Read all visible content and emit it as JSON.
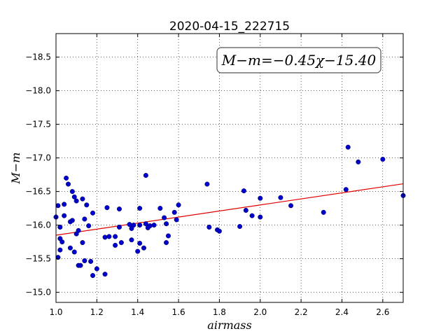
{
  "chart_data": {
    "type": "scatter",
    "title": "2020-04-15_222715",
    "xlabel": "airmass",
    "ylabel": "M−m",
    "xlim": [
      1.0,
      2.7
    ],
    "ylim": [
      -18.85,
      -14.85
    ],
    "y_inverted": true,
    "grid": true,
    "x_ticks": [
      1.0,
      1.2,
      1.4,
      1.6,
      1.8,
      2.0,
      2.2,
      2.4,
      2.6
    ],
    "x_tick_labels": [
      "1.0",
      "1.2",
      "1.4",
      "1.6",
      "1.8",
      "2.0",
      "2.2",
      "2.4",
      "2.6"
    ],
    "y_ticks": [
      -15.0,
      -15.5,
      -16.0,
      -16.5,
      -17.0,
      -17.5,
      -18.0,
      -18.5
    ],
    "y_tick_labels": [
      "−15.0",
      "−15.5",
      "−16.0",
      "−16.5",
      "−17.0",
      "−17.5",
      "−18.0",
      "−18.5"
    ],
    "annotation": "M−m=−0.45χ−15.40",
    "annotation_position": "top-right",
    "fit_line": {
      "slope": -0.45,
      "intercept": -15.4,
      "color": "#e00000"
    },
    "point_color": "#0000cc",
    "points": [
      [
        1.0,
        -16.12
      ],
      [
        1.01,
        -15.52
      ],
      [
        1.01,
        -16.29
      ],
      [
        1.02,
        -15.97
      ],
      [
        1.02,
        -15.8
      ],
      [
        1.02,
        -15.63
      ],
      [
        1.03,
        -15.75
      ],
      [
        1.04,
        -16.14
      ],
      [
        1.04,
        -16.31
      ],
      [
        1.05,
        -16.7
      ],
      [
        1.06,
        -16.61
      ],
      [
        1.07,
        -15.66
      ],
      [
        1.07,
        -16.05
      ],
      [
        1.08,
        -16.5
      ],
      [
        1.08,
        -16.07
      ],
      [
        1.09,
        -15.6
      ],
      [
        1.09,
        -16.42
      ],
      [
        1.1,
        -16.36
      ],
      [
        1.1,
        -15.87
      ],
      [
        1.11,
        -15.92
      ],
      [
        1.11,
        -15.4
      ],
      [
        1.12,
        -15.4
      ],
      [
        1.13,
        -16.39
      ],
      [
        1.13,
        -15.74
      ],
      [
        1.14,
        -15.47
      ],
      [
        1.14,
        -16.09
      ],
      [
        1.15,
        -16.3
      ],
      [
        1.16,
        -15.99
      ],
      [
        1.17,
        -15.46
      ],
      [
        1.18,
        -15.25
      ],
      [
        1.18,
        -16.18
      ],
      [
        1.2,
        -15.35
      ],
      [
        1.24,
        -15.27
      ],
      [
        1.24,
        -15.82
      ],
      [
        1.25,
        -16.26
      ],
      [
        1.26,
        -15.83
      ],
      [
        1.29,
        -15.7
      ],
      [
        1.29,
        -15.83
      ],
      [
        1.31,
        -15.97
      ],
      [
        1.31,
        -16.24
      ],
      [
        1.32,
        -15.74
      ],
      [
        1.36,
        -16.01
      ],
      [
        1.37,
        -15.95
      ],
      [
        1.37,
        -15.78
      ],
      [
        1.38,
        -16.0
      ],
      [
        1.4,
        -15.61
      ],
      [
        1.41,
        -16.25
      ],
      [
        1.41,
        -15.73
      ],
      [
        1.41,
        -16.0
      ],
      [
        1.43,
        -15.66
      ],
      [
        1.44,
        -16.74
      ],
      [
        1.44,
        -16.02
      ],
      [
        1.45,
        -15.96
      ],
      [
        1.46,
        -15.99
      ],
      [
        1.48,
        -16.0
      ],
      [
        1.51,
        -16.25
      ],
      [
        1.53,
        -16.11
      ],
      [
        1.54,
        -15.74
      ],
      [
        1.54,
        -16.02
      ],
      [
        1.55,
        -15.84
      ],
      [
        1.58,
        -16.19
      ],
      [
        1.59,
        -16.08
      ],
      [
        1.6,
        -16.3
      ],
      [
        1.74,
        -16.61
      ],
      [
        1.75,
        -15.97
      ],
      [
        1.79,
        -15.93
      ],
      [
        1.8,
        -15.91
      ],
      [
        1.9,
        -15.98
      ],
      [
        1.92,
        -16.51
      ],
      [
        1.93,
        -16.22
      ],
      [
        1.96,
        -16.14
      ],
      [
        2.0,
        -16.4
      ],
      [
        2.0,
        -16.12
      ],
      [
        2.1,
        -16.41
      ],
      [
        2.15,
        -16.29
      ],
      [
        2.31,
        -16.19
      ],
      [
        2.42,
        -16.53
      ],
      [
        2.43,
        -17.16
      ],
      [
        2.48,
        -16.94
      ],
      [
        2.6,
        -16.98
      ],
      [
        2.7,
        -16.44
      ]
    ]
  }
}
